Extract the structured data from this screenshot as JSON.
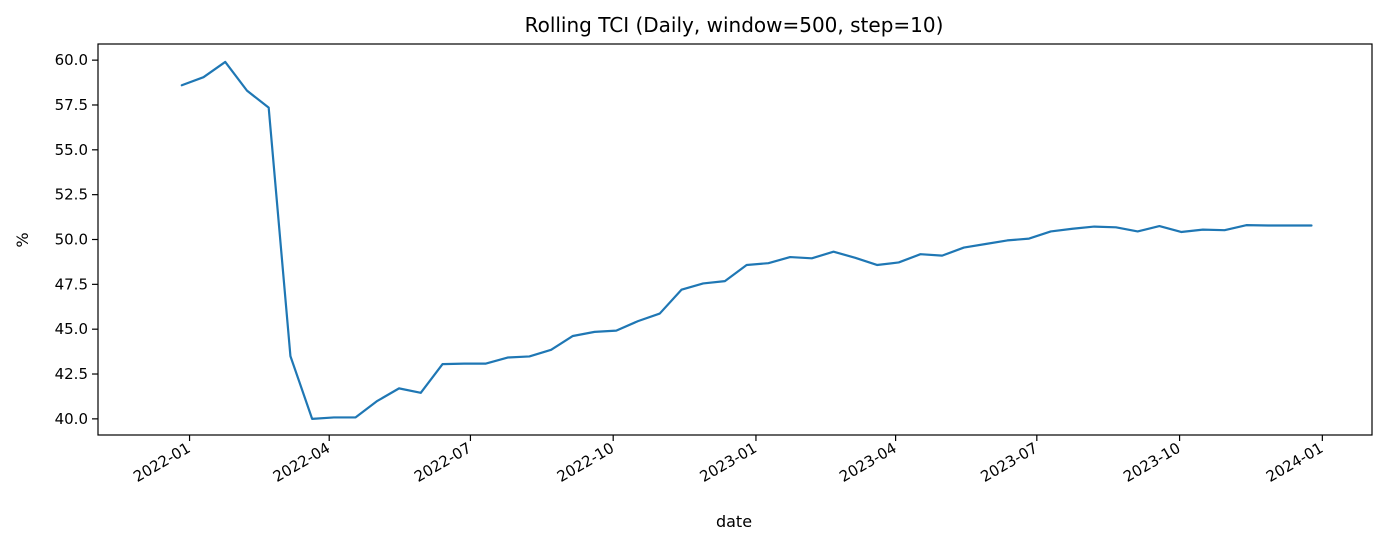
{
  "chart_data": {
    "type": "line",
    "title": "Rolling TCI (Daily, window=500, step=10)",
    "xlabel": "date",
    "ylabel": "%",
    "x_tick_labels": [
      "2022-01",
      "2022-04",
      "2022-07",
      "2022-10",
      "2023-01",
      "2023-04",
      "2023-07",
      "2023-10",
      "2024-01"
    ],
    "y_ticks": [
      40.0,
      42.5,
      45.0,
      47.5,
      50.0,
      52.5,
      55.0,
      57.5,
      60.0
    ],
    "y_tick_labels": [
      "40.0",
      "42.5",
      "45.0",
      "47.5",
      "50.0",
      "52.5",
      "55.0",
      "57.5",
      "60.0"
    ],
    "xlim": [
      "2021-11-03",
      "2024-02-02"
    ],
    "ylim": [
      39.1,
      60.9
    ],
    "grid": false,
    "line_color": "#1f77b4",
    "series": [
      {
        "x": [
          "2021-12-27",
          "2022-01-10",
          "2022-01-24",
          "2022-02-07",
          "2022-02-21",
          "2022-03-07",
          "2022-03-21",
          "2022-04-04",
          "2022-04-18",
          "2022-05-02",
          "2022-05-16",
          "2022-05-30",
          "2022-06-13",
          "2022-06-27",
          "2022-07-11",
          "2022-07-25",
          "2022-08-08",
          "2022-08-22",
          "2022-09-05",
          "2022-09-19",
          "2022-10-03",
          "2022-10-17",
          "2022-10-31",
          "2022-11-14",
          "2022-11-28",
          "2022-12-12",
          "2022-12-26",
          "2023-01-09",
          "2023-01-23",
          "2023-02-06",
          "2023-02-20",
          "2023-03-06",
          "2023-03-20",
          "2023-04-03",
          "2023-04-17",
          "2023-05-01",
          "2023-05-15",
          "2023-05-29",
          "2023-06-12",
          "2023-06-26",
          "2023-07-10",
          "2023-07-24",
          "2023-08-07",
          "2023-08-21",
          "2023-09-04",
          "2023-09-18",
          "2023-10-02",
          "2023-10-16",
          "2023-10-30",
          "2023-11-13",
          "2023-11-27",
          "2023-12-11",
          "2023-12-25"
        ],
        "values": [
          58.6,
          59.05,
          59.9,
          58.3,
          57.35,
          43.5,
          40.0,
          40.08,
          40.08,
          41.0,
          41.7,
          41.45,
          43.05,
          43.08,
          43.08,
          43.42,
          43.48,
          43.85,
          44.62,
          44.85,
          44.92,
          45.45,
          45.87,
          47.2,
          47.55,
          47.68,
          48.58,
          48.68,
          49.02,
          48.95,
          49.32,
          48.98,
          48.58,
          48.72,
          49.18,
          49.1,
          49.55,
          49.75,
          49.95,
          50.05,
          50.45,
          50.6,
          50.72,
          50.68,
          50.45,
          50.75,
          50.42,
          50.55,
          50.52,
          50.8,
          50.78,
          50.78,
          50.78
        ]
      }
    ]
  }
}
